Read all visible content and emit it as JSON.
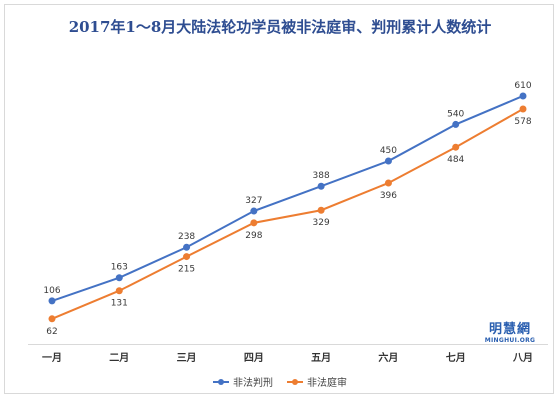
{
  "chart_data": {
    "type": "line",
    "title": "2017年1～8月大陆法轮功学员被非法庭审、判刑累计人数统计",
    "categories": [
      "一月",
      "二月",
      "三月",
      "四月",
      "五月",
      "六月",
      "七月",
      "八月"
    ],
    "series": [
      {
        "name": "非法判刑",
        "color": "#4472c4",
        "values": [
          106,
          163,
          238,
          327,
          388,
          450,
          540,
          610
        ]
      },
      {
        "name": "非法庭审",
        "color": "#ed7d31",
        "values": [
          62,
          131,
          215,
          298,
          329,
          396,
          484,
          578
        ]
      }
    ],
    "ylim": [
      0,
      680
    ],
    "grid": false,
    "legend": "bottom",
    "xlabel": "",
    "ylabel": ""
  },
  "watermark": {
    "main": "明慧網",
    "sub": "MINGHUI.ORG"
  }
}
